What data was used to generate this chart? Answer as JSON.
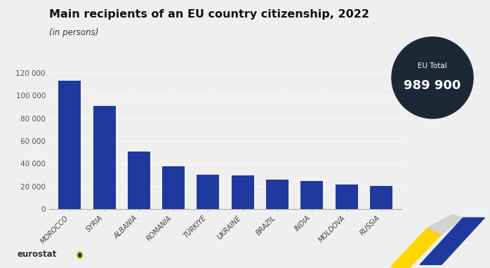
{
  "title": "Main recipients of an EU country citizenship, 2022",
  "subtitle": "(in persons)",
  "categories": [
    "MOROCCO",
    "SYRIA",
    "ALBANIA",
    "ROMANIA",
    "TÜRKIYE",
    "UKRAINE",
    "BRAZIL",
    "INDIA",
    "MOLDOVA",
    "RUSSIA"
  ],
  "values": [
    113500,
    91000,
    50500,
    37500,
    30000,
    29500,
    26000,
    24500,
    21500,
    20500
  ],
  "bar_color": "#1F3A9E",
  "background_color": "#EFEFEF",
  "ylim": [
    0,
    130000
  ],
  "yticks": [
    0,
    20000,
    40000,
    60000,
    80000,
    100000,
    120000
  ],
  "ytick_labels": [
    "0",
    "20 000",
    "40 000",
    "60 000",
    "80 000",
    "100 000",
    "120 000"
  ],
  "eu_total_label": "EU Total",
  "eu_total_value": "989 900",
  "circle_color": "#1C2836",
  "title_fontsize": 11.5,
  "subtitle_fontsize": 8.5,
  "tick_label_fontsize": 7.5,
  "axis_label_color": "#555555"
}
